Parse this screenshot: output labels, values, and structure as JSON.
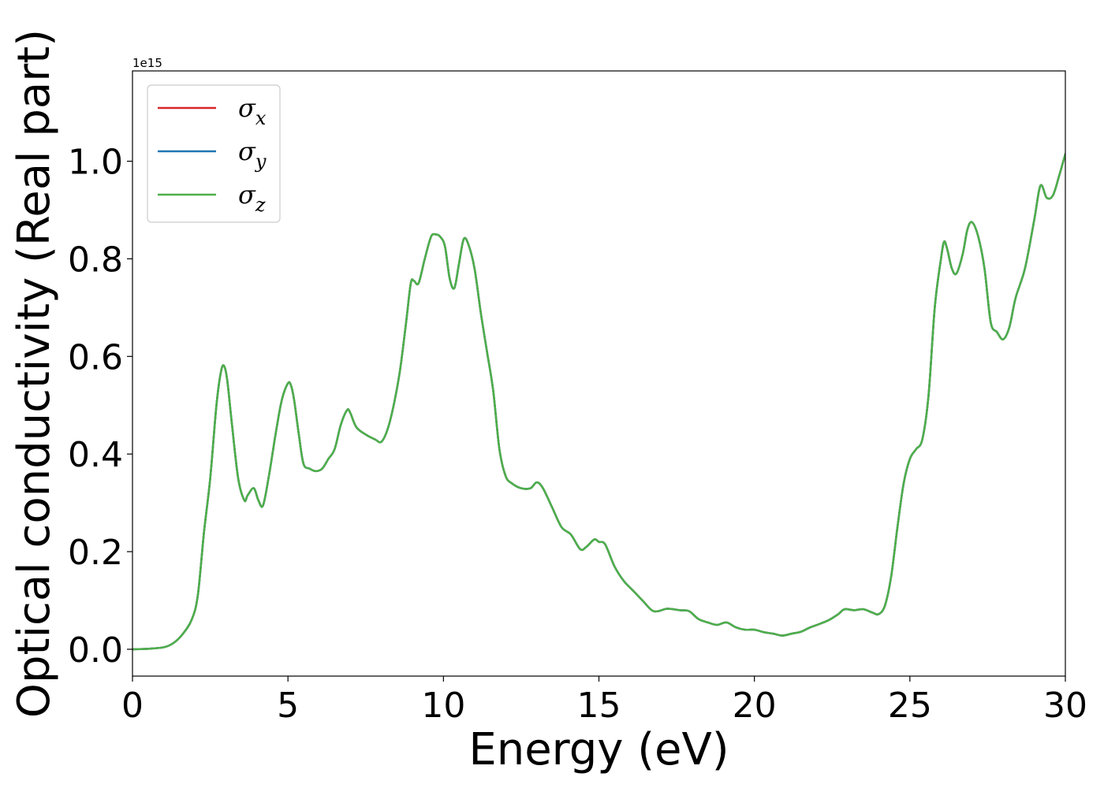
{
  "chart_data": {
    "type": "line",
    "xlabel": "Energy (eV)",
    "ylabel": "Optical conductivity (Real part)",
    "y_offset_label": "1e15",
    "xlim": [
      0,
      30
    ],
    "ylim": [
      -0.055,
      1.185
    ],
    "y_scale_factor": 1000000000000000.0,
    "x_ticks": [
      0,
      5,
      10,
      15,
      20,
      25,
      30
    ],
    "x_tick_labels": [
      "0",
      "5",
      "10",
      "15",
      "20",
      "25",
      "30"
    ],
    "y_ticks": [
      0.0,
      0.2,
      0.4,
      0.6,
      0.8,
      1.0
    ],
    "y_tick_labels": [
      "0.0",
      "0.2",
      "0.4",
      "0.6",
      "0.8",
      "1.0"
    ],
    "grid": false,
    "legend_position": "top-left",
    "legend": [
      {
        "name": "σx",
        "base": "σ",
        "sub": "x",
        "color": "#d62728"
      },
      {
        "name": "σy",
        "base": "σ",
        "sub": "y",
        "color": "#1f77b4"
      },
      {
        "name": "σz",
        "base": "σ",
        "sub": "z",
        "color": "#4daf4a"
      }
    ],
    "x": [
      0,
      0.5,
      1.0,
      1.3,
      1.6,
      1.9,
      2.1,
      2.3,
      2.5,
      2.7,
      2.85,
      2.95,
      3.05,
      3.2,
      3.4,
      3.6,
      3.7,
      3.9,
      4.05,
      4.2,
      4.4,
      4.6,
      4.8,
      5.0,
      5.1,
      5.2,
      5.35,
      5.5,
      5.7,
      5.9,
      6.1,
      6.3,
      6.5,
      6.7,
      6.9,
      7.0,
      7.2,
      7.5,
      7.8,
      8.0,
      8.2,
      8.4,
      8.6,
      8.8,
      8.95,
      9.05,
      9.2,
      9.4,
      9.6,
      9.75,
      9.9,
      10.05,
      10.2,
      10.35,
      10.5,
      10.65,
      10.8,
      11.0,
      11.2,
      11.4,
      11.6,
      11.8,
      12.0,
      12.2,
      12.5,
      12.8,
      13.0,
      13.2,
      13.5,
      13.8,
      14.1,
      14.4,
      14.6,
      14.85,
      15.0,
      15.2,
      15.5,
      15.8,
      16.1,
      16.4,
      16.7,
      16.9,
      17.2,
      17.6,
      17.9,
      18.2,
      18.5,
      18.8,
      19.1,
      19.4,
      19.7,
      20.0,
      20.3,
      20.6,
      20.9,
      21.2,
      21.5,
      21.8,
      22.1,
      22.4,
      22.7,
      22.9,
      23.2,
      23.5,
      23.8,
      24.0,
      24.2,
      24.4,
      24.6,
      24.8,
      25.0,
      25.2,
      25.4,
      25.6,
      25.8,
      26.0,
      26.1,
      26.2,
      26.35,
      26.5,
      26.7,
      26.85,
      27.0,
      27.2,
      27.4,
      27.6,
      27.8,
      28.0,
      28.2,
      28.4,
      28.7,
      29.0,
      29.2,
      29.4,
      29.6,
      29.8,
      30.0
    ],
    "series": [
      {
        "name": "σx",
        "values": [
          0.0,
          0.001,
          0.004,
          0.012,
          0.03,
          0.06,
          0.11,
          0.24,
          0.35,
          0.5,
          0.57,
          0.58,
          0.55,
          0.46,
          0.35,
          0.305,
          0.315,
          0.33,
          0.305,
          0.295,
          0.36,
          0.44,
          0.51,
          0.545,
          0.54,
          0.51,
          0.44,
          0.38,
          0.37,
          0.365,
          0.37,
          0.39,
          0.41,
          0.46,
          0.49,
          0.485,
          0.455,
          0.44,
          0.43,
          0.425,
          0.45,
          0.5,
          0.57,
          0.67,
          0.75,
          0.755,
          0.75,
          0.8,
          0.845,
          0.85,
          0.845,
          0.825,
          0.76,
          0.74,
          0.79,
          0.84,
          0.83,
          0.78,
          0.69,
          0.61,
          0.53,
          0.41,
          0.355,
          0.34,
          0.33,
          0.33,
          0.342,
          0.33,
          0.29,
          0.25,
          0.235,
          0.205,
          0.21,
          0.225,
          0.22,
          0.215,
          0.17,
          0.14,
          0.12,
          0.1,
          0.08,
          0.078,
          0.083,
          0.08,
          0.078,
          0.062,
          0.055,
          0.05,
          0.055,
          0.045,
          0.04,
          0.04,
          0.035,
          0.032,
          0.028,
          0.032,
          0.036,
          0.045,
          0.052,
          0.06,
          0.072,
          0.082,
          0.08,
          0.082,
          0.075,
          0.072,
          0.09,
          0.15,
          0.25,
          0.34,
          0.39,
          0.41,
          0.43,
          0.52,
          0.7,
          0.8,
          0.835,
          0.82,
          0.78,
          0.77,
          0.81,
          0.86,
          0.875,
          0.845,
          0.78,
          0.67,
          0.65,
          0.635,
          0.66,
          0.72,
          0.78,
          0.88,
          0.95,
          0.925,
          0.93,
          0.97,
          1.015
        ]
      },
      {
        "name": "σy",
        "values": [
          0.0,
          0.001,
          0.004,
          0.012,
          0.03,
          0.06,
          0.11,
          0.24,
          0.35,
          0.5,
          0.57,
          0.58,
          0.55,
          0.46,
          0.35,
          0.305,
          0.315,
          0.33,
          0.305,
          0.295,
          0.36,
          0.44,
          0.51,
          0.545,
          0.54,
          0.51,
          0.44,
          0.38,
          0.37,
          0.365,
          0.37,
          0.39,
          0.41,
          0.46,
          0.49,
          0.485,
          0.455,
          0.44,
          0.43,
          0.425,
          0.45,
          0.5,
          0.57,
          0.67,
          0.75,
          0.755,
          0.75,
          0.8,
          0.845,
          0.85,
          0.845,
          0.825,
          0.76,
          0.74,
          0.79,
          0.84,
          0.83,
          0.78,
          0.69,
          0.61,
          0.53,
          0.41,
          0.355,
          0.34,
          0.33,
          0.33,
          0.342,
          0.33,
          0.29,
          0.25,
          0.235,
          0.205,
          0.21,
          0.225,
          0.22,
          0.215,
          0.17,
          0.14,
          0.12,
          0.1,
          0.08,
          0.078,
          0.083,
          0.08,
          0.078,
          0.062,
          0.055,
          0.05,
          0.055,
          0.045,
          0.04,
          0.04,
          0.035,
          0.032,
          0.028,
          0.032,
          0.036,
          0.045,
          0.052,
          0.06,
          0.072,
          0.082,
          0.08,
          0.082,
          0.075,
          0.072,
          0.09,
          0.15,
          0.25,
          0.34,
          0.39,
          0.41,
          0.43,
          0.52,
          0.7,
          0.8,
          0.835,
          0.82,
          0.78,
          0.77,
          0.81,
          0.86,
          0.875,
          0.845,
          0.78,
          0.67,
          0.65,
          0.635,
          0.66,
          0.72,
          0.78,
          0.88,
          0.95,
          0.925,
          0.93,
          0.97,
          1.015
        ]
      },
      {
        "name": "σz",
        "values": [
          0.0,
          0.001,
          0.004,
          0.012,
          0.03,
          0.06,
          0.11,
          0.24,
          0.35,
          0.5,
          0.57,
          0.58,
          0.55,
          0.46,
          0.35,
          0.305,
          0.315,
          0.33,
          0.305,
          0.295,
          0.36,
          0.44,
          0.51,
          0.545,
          0.54,
          0.51,
          0.44,
          0.38,
          0.37,
          0.365,
          0.37,
          0.39,
          0.41,
          0.46,
          0.49,
          0.485,
          0.455,
          0.44,
          0.43,
          0.425,
          0.45,
          0.5,
          0.57,
          0.67,
          0.75,
          0.755,
          0.75,
          0.8,
          0.845,
          0.85,
          0.845,
          0.825,
          0.76,
          0.74,
          0.79,
          0.84,
          0.83,
          0.78,
          0.69,
          0.61,
          0.53,
          0.41,
          0.355,
          0.34,
          0.33,
          0.33,
          0.342,
          0.33,
          0.29,
          0.25,
          0.235,
          0.205,
          0.21,
          0.225,
          0.22,
          0.215,
          0.17,
          0.14,
          0.12,
          0.1,
          0.08,
          0.078,
          0.083,
          0.08,
          0.078,
          0.062,
          0.055,
          0.05,
          0.055,
          0.045,
          0.04,
          0.04,
          0.035,
          0.032,
          0.028,
          0.032,
          0.036,
          0.045,
          0.052,
          0.06,
          0.072,
          0.082,
          0.08,
          0.082,
          0.075,
          0.072,
          0.09,
          0.15,
          0.25,
          0.34,
          0.39,
          0.41,
          0.43,
          0.52,
          0.7,
          0.8,
          0.835,
          0.82,
          0.78,
          0.77,
          0.81,
          0.86,
          0.875,
          0.845,
          0.78,
          0.67,
          0.65,
          0.635,
          0.66,
          0.72,
          0.78,
          0.88,
          0.95,
          0.925,
          0.93,
          0.97,
          1.015
        ]
      }
    ]
  }
}
